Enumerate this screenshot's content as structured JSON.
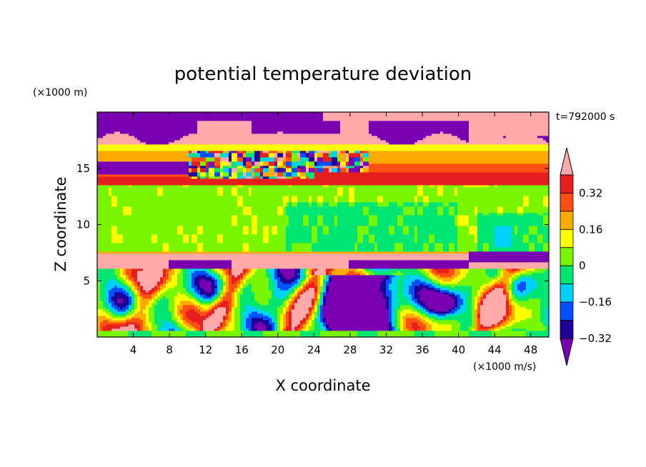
{
  "chart_data": {
    "type": "heatmap",
    "title": "potential temperature deviation",
    "xlabel": "X coordinate",
    "ylabel": "Z coordinate",
    "x_units": "(×1000 m/s)",
    "y_units": "(×1000 m)",
    "time_label": "t=792000 s",
    "xlim": [
      0,
      50
    ],
    "ylim": [
      0,
      20
    ],
    "x_ticks": [
      "4",
      "8",
      "12",
      "16",
      "20",
      "24",
      "28",
      "32",
      "36",
      "40",
      "44",
      "48"
    ],
    "y_ticks": [
      "5",
      "10",
      "15"
    ],
    "colorbar": {
      "labels": [
        "0.32",
        "0.16",
        "0",
        "−0.16",
        "−0.32"
      ],
      "levels": [
        -0.4,
        -0.32,
        -0.24,
        -0.16,
        -0.08,
        0,
        0.08,
        0.16,
        0.24,
        0.32,
        0.4
      ],
      "colors": [
        "#7a00b4",
        "#1e0096",
        "#0050ff",
        "#00d2ff",
        "#00e673",
        "#78f500",
        "#ffff00",
        "#ffaa00",
        "#ff5014",
        "#e61e1e",
        "#ffaaaa"
      ]
    },
    "regions": [
      {
        "z_range": [
          0,
          6.2
        ],
        "description_level": "mixed -0.4 to 0.4"
      },
      {
        "z_range": [
          6.2,
          7.4
        ],
        "value": 0.4
      },
      {
        "z_range": [
          7.4,
          13.5
        ],
        "value": 0.04
      },
      {
        "z_range": [
          13.5,
          17
        ],
        "value": 0.3
      },
      {
        "z_range": [
          17,
          20
        ],
        "value": 0.4
      }
    ]
  }
}
